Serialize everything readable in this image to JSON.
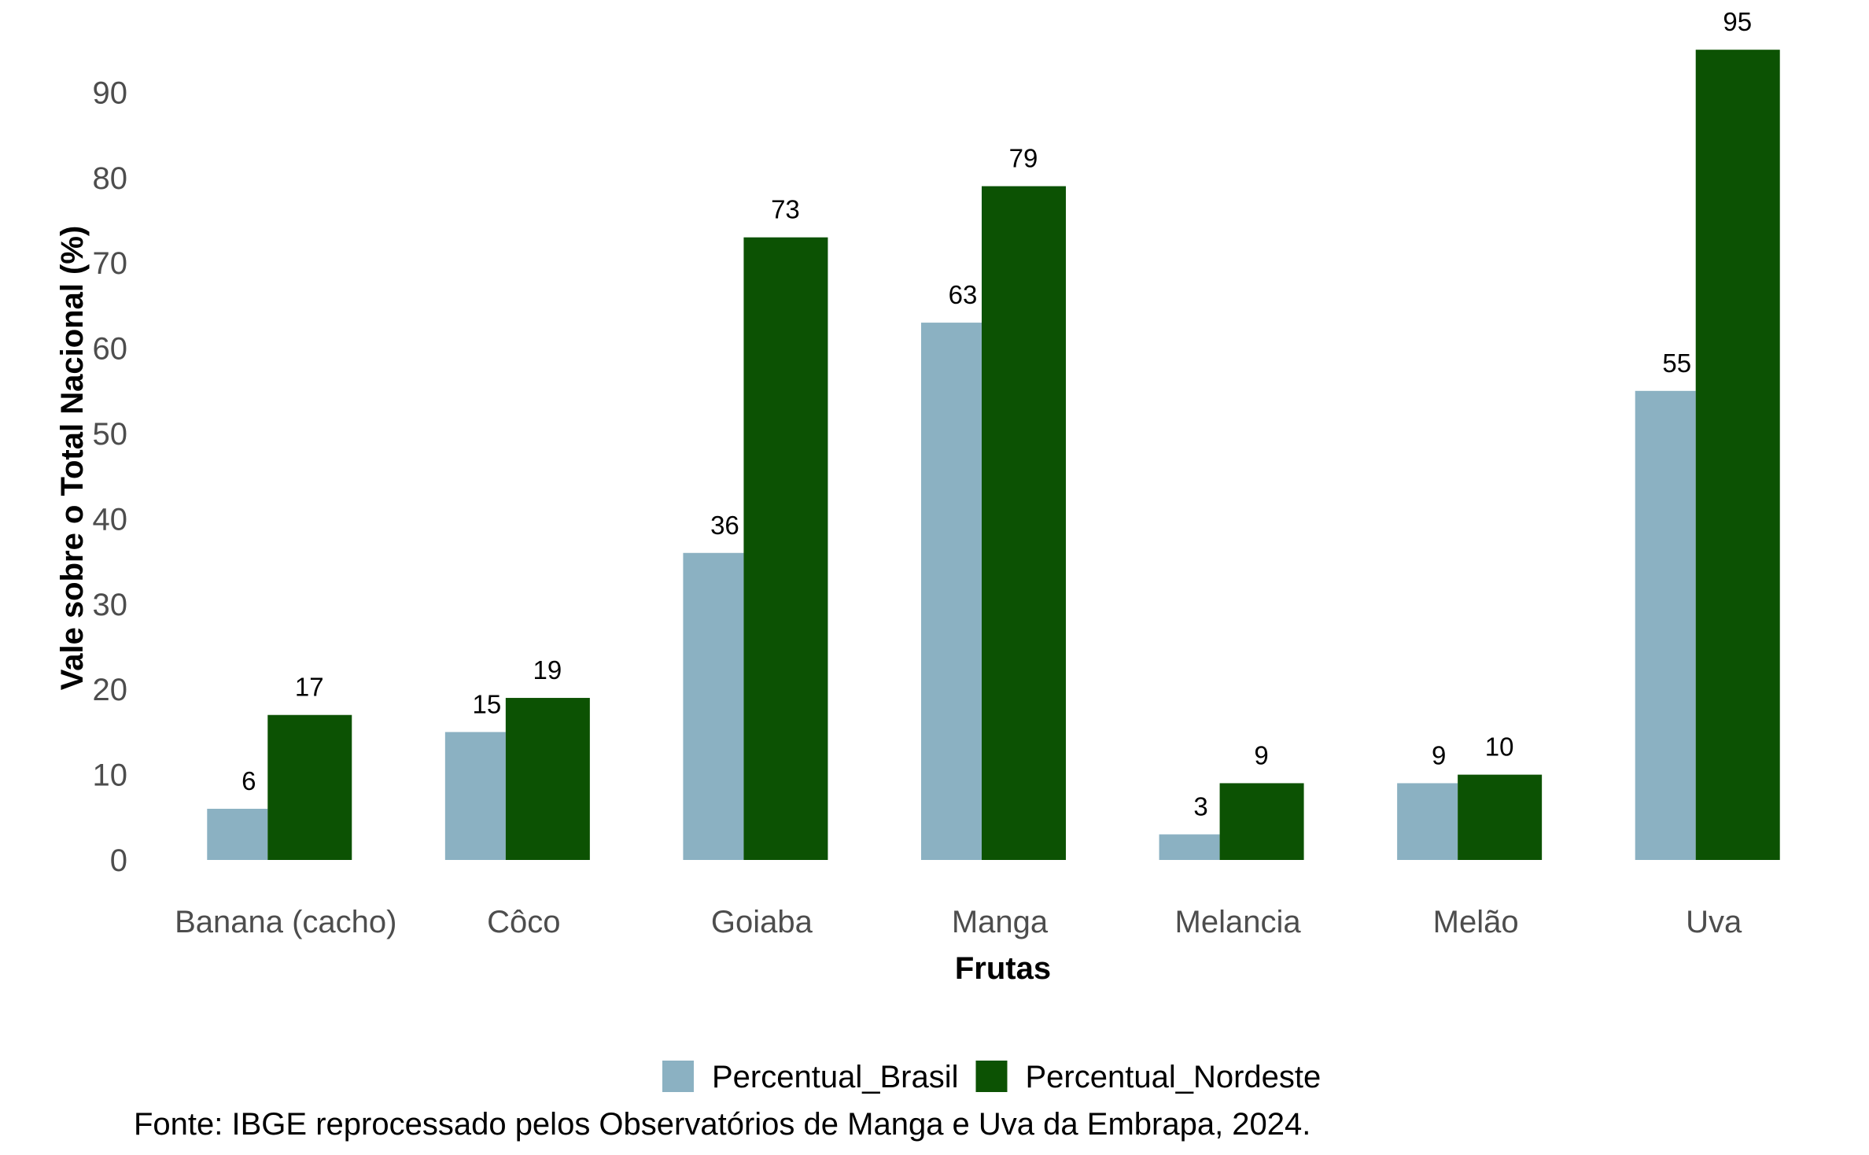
{
  "chart_data": {
    "type": "bar",
    "title": "",
    "xlabel": "Frutas",
    "ylabel": "Vale sobre o Total Nacional (%)",
    "categories": [
      "Banana (cacho)",
      "Côco",
      "Goiaba",
      "Manga",
      "Melancia",
      "Melão",
      "Uva"
    ],
    "series": [
      {
        "name": "Percentual_Brasil",
        "color": "#8bb1c2",
        "values": [
          6,
          15,
          36,
          63,
          3,
          9,
          55
        ]
      },
      {
        "name": "Percentual_Nordeste",
        "color": "#0c5203",
        "values": [
          17,
          19,
          73,
          79,
          9,
          10,
          95
        ]
      }
    ],
    "ylim": [
      0,
      95
    ],
    "yticks": [
      0,
      10,
      20,
      30,
      40,
      50,
      60,
      70,
      80,
      90
    ],
    "grid": false,
    "legend_position": "bottom"
  },
  "caption": "Fonte: IBGE reprocessado pelos Observatórios de Manga e Uva da Embrapa, 2024."
}
